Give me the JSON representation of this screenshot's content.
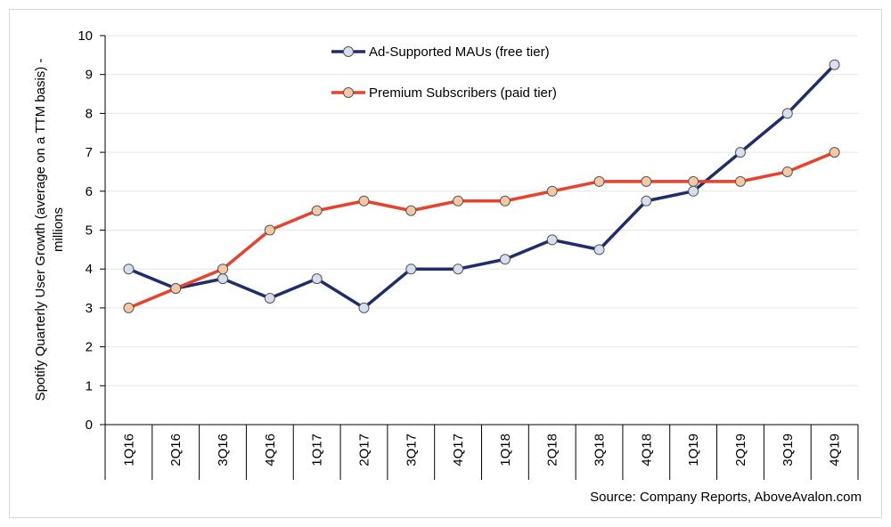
{
  "chart_data": {
    "type": "line",
    "title": "",
    "xlabel": "",
    "ylabel": "Spotify Quarterly User Growth (average on a TTM basis) -",
    "ylabel_line2": "millions",
    "ylim": [
      0,
      10
    ],
    "yticks": [
      "0",
      "1",
      "2",
      "3",
      "4",
      "5",
      "6",
      "7",
      "8",
      "9",
      "10"
    ],
    "grid": true,
    "legend_position": "top-center",
    "categories": [
      "1Q16",
      "2Q16",
      "3Q16",
      "4Q16",
      "1Q17",
      "2Q17",
      "3Q17",
      "4Q17",
      "1Q18",
      "2Q18",
      "3Q18",
      "4Q18",
      "1Q19",
      "2Q19",
      "3Q19",
      "4Q19"
    ],
    "series": [
      {
        "name": "Ad-Supported MAUs (free tier)",
        "color": "#1f2d6b",
        "marker_fill": "#d9deef",
        "values": [
          4.0,
          3.5,
          3.75,
          3.25,
          3.75,
          3.0,
          4.0,
          4.0,
          4.25,
          4.75,
          4.5,
          5.75,
          6.0,
          7.0,
          8.0,
          9.25
        ]
      },
      {
        "name": "Premium Subscribers (paid tier)",
        "color": "#e8412c",
        "marker_fill": "#f3c9a5",
        "values": [
          3.0,
          3.5,
          4.0,
          5.0,
          5.5,
          5.75,
          5.5,
          5.75,
          5.75,
          6.0,
          6.25,
          6.25,
          6.25,
          6.25,
          6.5,
          7.0
        ]
      }
    ],
    "source": "Source: Company Reports, AboveAvalon.com"
  }
}
